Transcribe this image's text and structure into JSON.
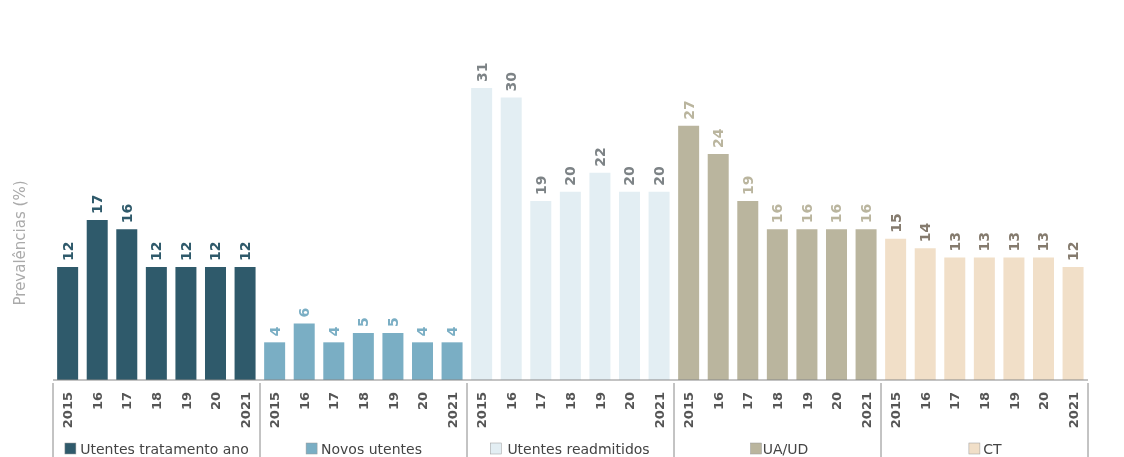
{
  "chart_data": {
    "type": "bar",
    "ylabel": "Prevalências (%)",
    "data_labels": true,
    "legend": "bottom",
    "categories": [
      "2015",
      "16",
      "17",
      "18",
      "19",
      "20",
      "2021",
      "2015",
      "16",
      "17",
      "18",
      "19",
      "20",
      "2021",
      "2015",
      "16",
      "17",
      "18",
      "19",
      "20",
      "2021",
      "2015",
      "16",
      "17",
      "18",
      "19",
      "20",
      "2021",
      "2015",
      "16",
      "17",
      "18",
      "19",
      "20",
      "2021"
    ],
    "series": [
      {
        "name": "Utentes tratamento ano",
        "color": "#2f5a6b",
        "values": [
          12,
          17,
          16,
          12,
          12,
          12,
          12,
          null,
          null,
          null,
          null,
          null,
          null,
          null,
          null,
          null,
          null,
          null,
          null,
          null,
          null,
          null,
          null,
          null,
          null,
          null,
          null,
          null,
          null,
          null,
          null,
          null,
          null,
          null,
          null
        ]
      },
      {
        "name": "Novos utentes",
        "color": "#7aaec4",
        "values": [
          null,
          null,
          null,
          null,
          null,
          null,
          null,
          4,
          6,
          4,
          5,
          5,
          4,
          4,
          null,
          null,
          null,
          null,
          null,
          null,
          null,
          null,
          null,
          null,
          null,
          null,
          null,
          null,
          null,
          null,
          null,
          null,
          null,
          null,
          null
        ]
      },
      {
        "name": "Utentes readmitidos",
        "color": "#e3eef3",
        "values": [
          null,
          null,
          null,
          null,
          null,
          null,
          null,
          null,
          null,
          null,
          null,
          null,
          null,
          null,
          31,
          30,
          19,
          20,
          22,
          20,
          20,
          null,
          null,
          null,
          null,
          null,
          null,
          null,
          null,
          null,
          null,
          null,
          null,
          null,
          null
        ]
      },
      {
        "name": "UA/UD",
        "color": "#bab59e",
        "values": [
          null,
          null,
          null,
          null,
          null,
          null,
          null,
          null,
          null,
          null,
          null,
          null,
          null,
          null,
          null,
          null,
          null,
          null,
          null,
          null,
          null,
          27,
          24,
          19,
          16,
          16,
          16,
          16,
          null,
          null,
          null,
          null,
          null,
          null,
          null
        ]
      },
      {
        "name": "CT",
        "color": "#f1dfc8",
        "values": [
          null,
          null,
          null,
          null,
          null,
          null,
          null,
          null,
          null,
          null,
          null,
          null,
          null,
          null,
          null,
          null,
          null,
          null,
          null,
          null,
          null,
          null,
          null,
          null,
          null,
          null,
          null,
          null,
          15,
          14,
          13,
          13,
          13,
          13,
          12
        ]
      }
    ]
  }
}
